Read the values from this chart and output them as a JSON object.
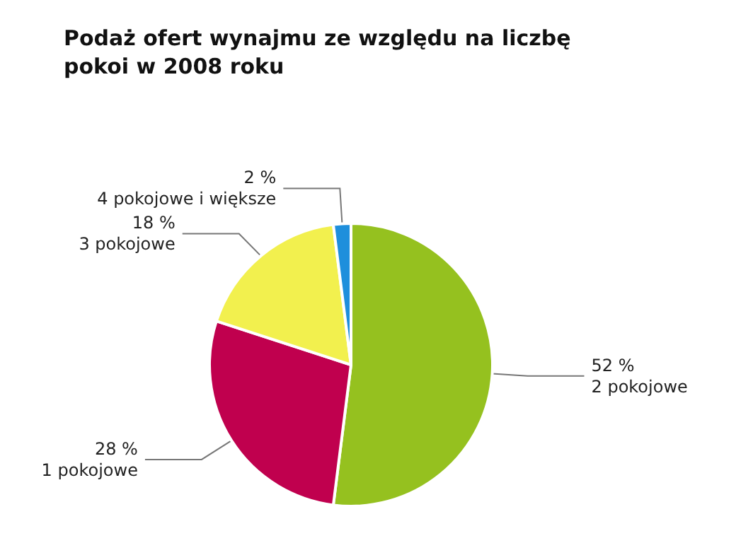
{
  "chart_data": {
    "type": "pie",
    "title": "Podaż ofert wynajmu ze względu na liczbę pokoi w 2008 roku",
    "categories": [
      "2 pokojowe",
      "1 pokojowe",
      "3 pokojowe",
      "4 pokojowe i większe"
    ],
    "values": [
      52,
      28,
      18,
      2
    ],
    "value_labels": [
      "52 %",
      "28 %",
      "18 %",
      "2 %"
    ],
    "colors": [
      "#95c11f",
      "#c0004e",
      "#f2f04e",
      "#1e8fdc"
    ],
    "legend": false
  }
}
